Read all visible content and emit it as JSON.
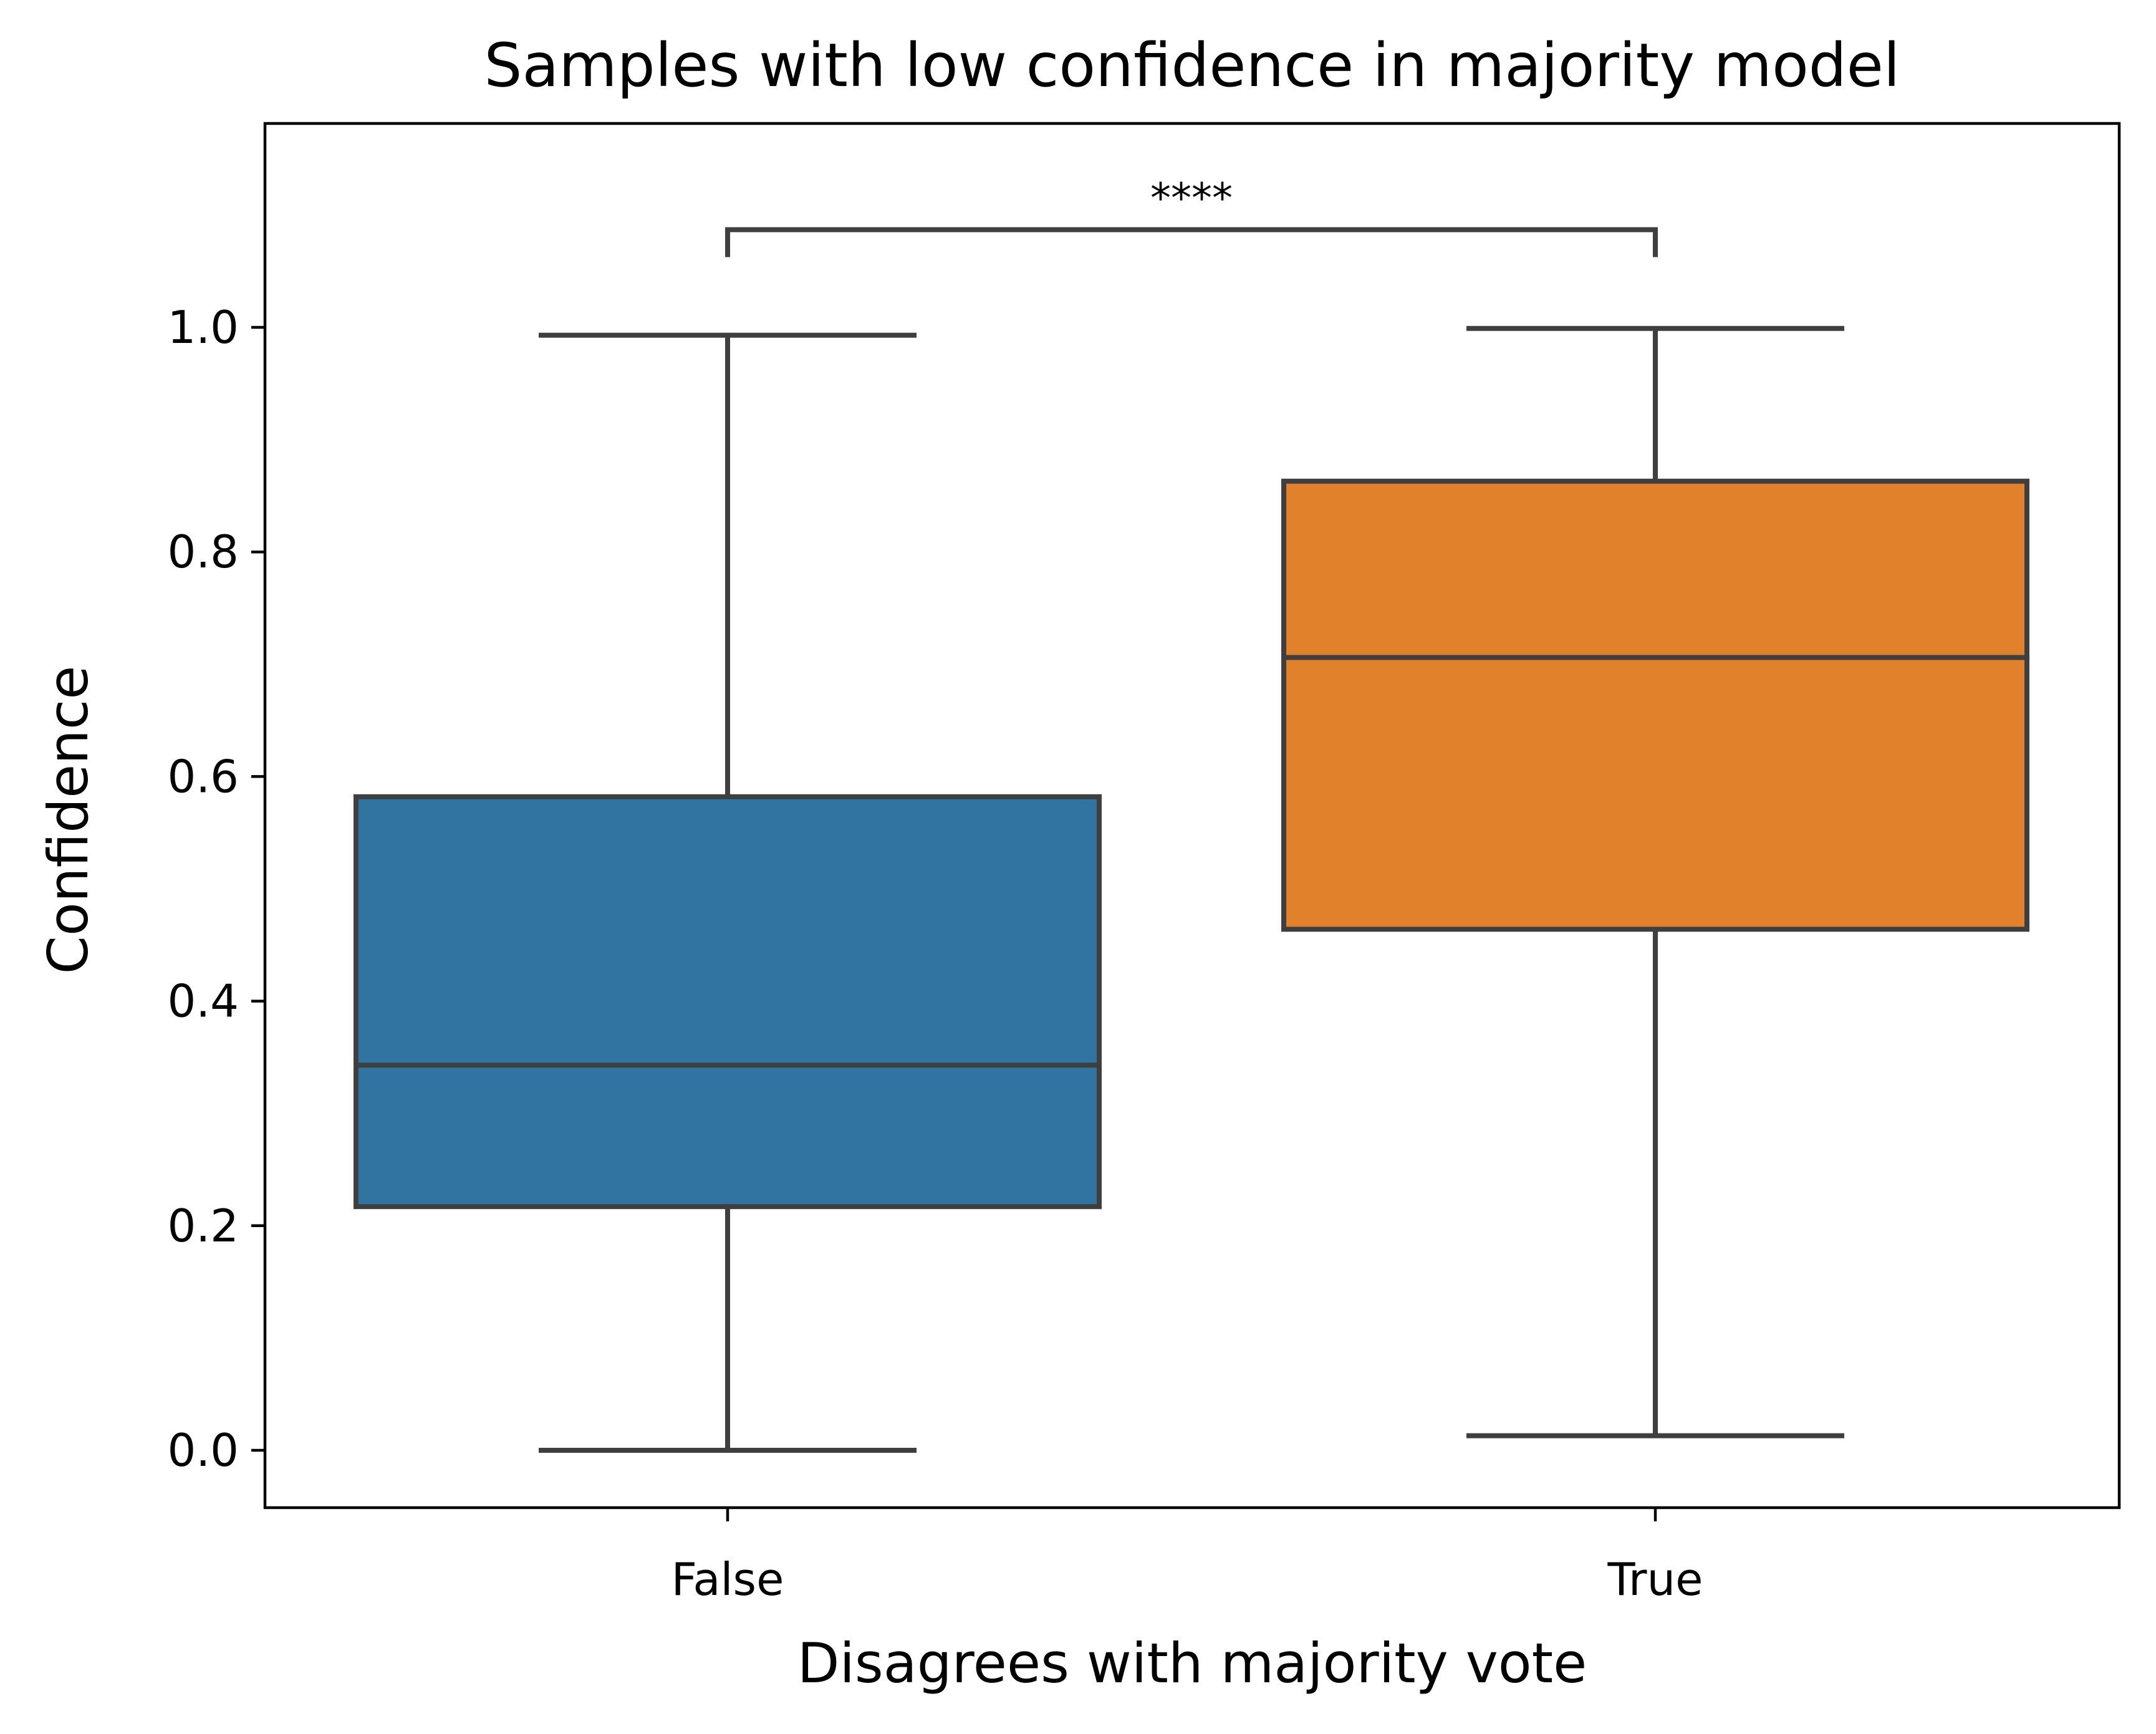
{
  "chart_data": {
    "type": "box",
    "title": "Samples with low confidence in majority model",
    "xlabel": "Disagrees with majority vote",
    "ylabel": "Confidence",
    "ylim": [
      -0.05,
      1.18
    ],
    "y_ticks": [
      0.0,
      0.2,
      0.4,
      0.6,
      0.8,
      1.0
    ],
    "y_tick_labels": [
      "0.0",
      "0.2",
      "0.4",
      "0.6",
      "0.8",
      "1.0"
    ],
    "categories": [
      "False",
      "True"
    ],
    "boxes": [
      {
        "category": "False",
        "whisker_low": 0.0,
        "q1": 0.217,
        "median": 0.343,
        "q3": 0.582,
        "whisker_high": 0.993,
        "color": "#3274a1"
      },
      {
        "category": "True",
        "whisker_low": 0.013,
        "q1": 0.464,
        "median": 0.706,
        "q3": 0.863,
        "whisker_high": 0.999,
        "color": "#e1812c"
      }
    ],
    "significance": {
      "label": "****",
      "from": "False",
      "to": "True",
      "y": 1.087
    },
    "grid": false,
    "legend": "none",
    "line_color": "#3f3f3f"
  }
}
